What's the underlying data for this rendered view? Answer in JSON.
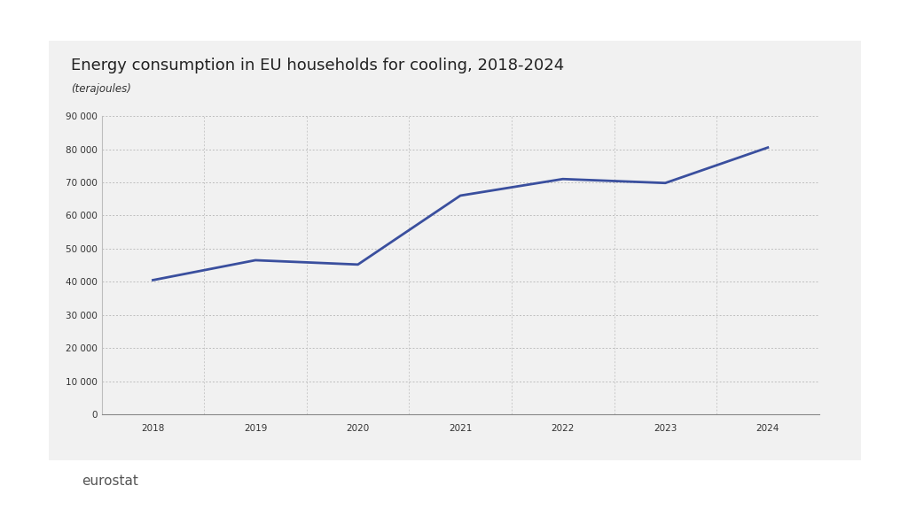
{
  "chart_data": {
    "type": "line",
    "title": "Energy consumption in EU households for cooling, 2018-2024",
    "subtitle": "(terajoules)",
    "source": "eurostat",
    "categories": [
      "2018",
      "2019",
      "2020",
      "2021",
      "2022",
      "2023",
      "2024"
    ],
    "values": [
      40500,
      46500,
      45200,
      66000,
      71000,
      69800,
      80500
    ],
    "color": "#3a4f9e",
    "ylim": [
      0,
      90000
    ],
    "yticks": [
      0,
      {
        "value": 10000,
        "label": "10 000"
      },
      {
        "value": 20000,
        "label": "20 000"
      },
      {
        "value": 30000,
        "label": "30 000"
      },
      {
        "value": 40000,
        "label": "40 000"
      },
      {
        "value": 50000,
        "label": "50 000"
      },
      {
        "value": 60000,
        "label": "60 000"
      },
      {
        "value": 70000,
        "label": "70 000"
      },
      {
        "value": 80000,
        "label": "80 000"
      },
      {
        "value": 90000,
        "label": "90 000"
      }
    ],
    "grid": true
  }
}
